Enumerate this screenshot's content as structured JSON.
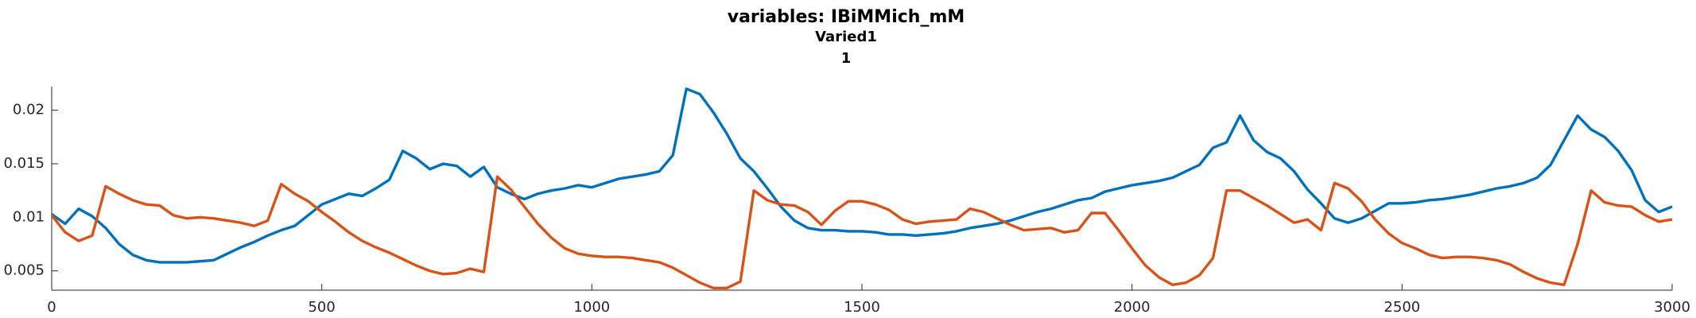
{
  "chart_data": {
    "type": "line",
    "title": "variables: IBiMMich_mM",
    "subtitle": [
      "Varied1",
      "1"
    ],
    "x": [
      0,
      25,
      50,
      75,
      100,
      125,
      150,
      175,
      200,
      225,
      250,
      275,
      300,
      325,
      350,
      375,
      400,
      425,
      450,
      475,
      500,
      525,
      550,
      575,
      600,
      625,
      650,
      675,
      700,
      725,
      750,
      775,
      800,
      825,
      850,
      875,
      900,
      925,
      950,
      975,
      1000,
      1025,
      1050,
      1075,
      1100,
      1125,
      1150,
      1175,
      1200,
      1225,
      1250,
      1275,
      1300,
      1325,
      1350,
      1375,
      1400,
      1425,
      1450,
      1475,
      1500,
      1525,
      1550,
      1575,
      1600,
      1625,
      1650,
      1675,
      1700,
      1725,
      1750,
      1775,
      1800,
      1825,
      1850,
      1875,
      1900,
      1925,
      1950,
      1975,
      2000,
      2025,
      2050,
      2075,
      2100,
      2125,
      2150,
      2175,
      2200,
      2225,
      2250,
      2275,
      2300,
      2325,
      2350,
      2375,
      2400,
      2425,
      2450,
      2475,
      2500,
      2525,
      2550,
      2575,
      2600,
      2625,
      2650,
      2675,
      2700,
      2725,
      2750,
      2775,
      2800,
      2825,
      2850,
      2875,
      2900,
      2925,
      2950,
      2975,
      3000
    ],
    "series": [
      {
        "color": "#0072bd",
        "values": [
          0.0103,
          0.0094,
          0.0108,
          0.0101,
          0.009,
          0.0075,
          0.0065,
          0.006,
          0.0058,
          0.0058,
          0.0058,
          0.0059,
          0.006,
          0.0066,
          0.0072,
          0.0077,
          0.0083,
          0.0088,
          0.0092,
          0.0102,
          0.0112,
          0.0117,
          0.0122,
          0.012,
          0.0127,
          0.0135,
          0.0162,
          0.0155,
          0.0145,
          0.015,
          0.0148,
          0.0138,
          0.0147,
          0.0128,
          0.0122,
          0.0117,
          0.0122,
          0.0125,
          0.0127,
          0.013,
          0.0128,
          0.0132,
          0.0136,
          0.0138,
          0.014,
          0.0143,
          0.0158,
          0.022,
          0.0215,
          0.0198,
          0.0178,
          0.0155,
          0.0143,
          0.0127,
          0.011,
          0.0097,
          0.009,
          0.0088,
          0.0088,
          0.0087,
          0.0087,
          0.0086,
          0.0084,
          0.0084,
          0.0083,
          0.0084,
          0.0085,
          0.0087,
          0.009,
          0.0092,
          0.0094,
          0.0097,
          0.0101,
          0.0105,
          0.0108,
          0.0112,
          0.0116,
          0.0118,
          0.0124,
          0.0127,
          0.013,
          0.0132,
          0.0134,
          0.0137,
          0.0143,
          0.0149,
          0.0165,
          0.017,
          0.0195,
          0.0172,
          0.0161,
          0.0155,
          0.0143,
          0.0126,
          0.0113,
          0.0099,
          0.0095,
          0.0099,
          0.0106,
          0.0113,
          0.0113,
          0.0114,
          0.0116,
          0.0117,
          0.0119,
          0.0121,
          0.0124,
          0.0127,
          0.0129,
          0.0132,
          0.0137,
          0.0149,
          0.0172,
          0.0195,
          0.0182,
          0.0175,
          0.0162,
          0.0144,
          0.0116,
          0.0105,
          0.011
        ]
      },
      {
        "color": "#d95319",
        "values": [
          0.0102,
          0.0086,
          0.0078,
          0.0083,
          0.0129,
          0.0122,
          0.0116,
          0.0112,
          0.0111,
          0.0102,
          0.0099,
          0.01,
          0.0099,
          0.0097,
          0.0095,
          0.0092,
          0.0097,
          0.0131,
          0.0122,
          0.0115,
          0.0105,
          0.0096,
          0.0086,
          0.0078,
          0.0072,
          0.0067,
          0.0061,
          0.0055,
          0.005,
          0.0047,
          0.0048,
          0.0052,
          0.0049,
          0.0138,
          0.0126,
          0.011,
          0.0094,
          0.0081,
          0.0071,
          0.0066,
          0.0064,
          0.0063,
          0.0063,
          0.0062,
          0.006,
          0.0058,
          0.0053,
          0.0046,
          0.0039,
          0.0034,
          0.0034,
          0.004,
          0.0125,
          0.0116,
          0.0112,
          0.0111,
          0.0105,
          0.0093,
          0.0106,
          0.0115,
          0.0115,
          0.0112,
          0.0107,
          0.0098,
          0.0094,
          0.0096,
          0.0097,
          0.0098,
          0.0108,
          0.0105,
          0.0099,
          0.0093,
          0.0088,
          0.0089,
          0.009,
          0.0086,
          0.0088,
          0.0104,
          0.0104,
          0.0088,
          0.0071,
          0.0055,
          0.0044,
          0.0037,
          0.0039,
          0.0046,
          0.0062,
          0.0125,
          0.0125,
          0.0118,
          0.0111,
          0.0103,
          0.0095,
          0.0098,
          0.0088,
          0.0132,
          0.0127,
          0.0115,
          0.0098,
          0.0085,
          0.0076,
          0.0071,
          0.0065,
          0.0062,
          0.0063,
          0.0063,
          0.0062,
          0.006,
          0.0056,
          0.0049,
          0.0043,
          0.0039,
          0.0037,
          0.0075,
          0.0125,
          0.0114,
          0.0111,
          0.011,
          0.0102,
          0.0096,
          0.0098
        ]
      }
    ],
    "xlim": [
      0,
      3000
    ],
    "xticks": [
      0,
      500,
      1000,
      1500,
      2000,
      2500,
      3000
    ],
    "ylim": [
      0.0032,
      0.0222
    ],
    "yticks": [
      0.005,
      0.01,
      0.015,
      0.02
    ]
  }
}
